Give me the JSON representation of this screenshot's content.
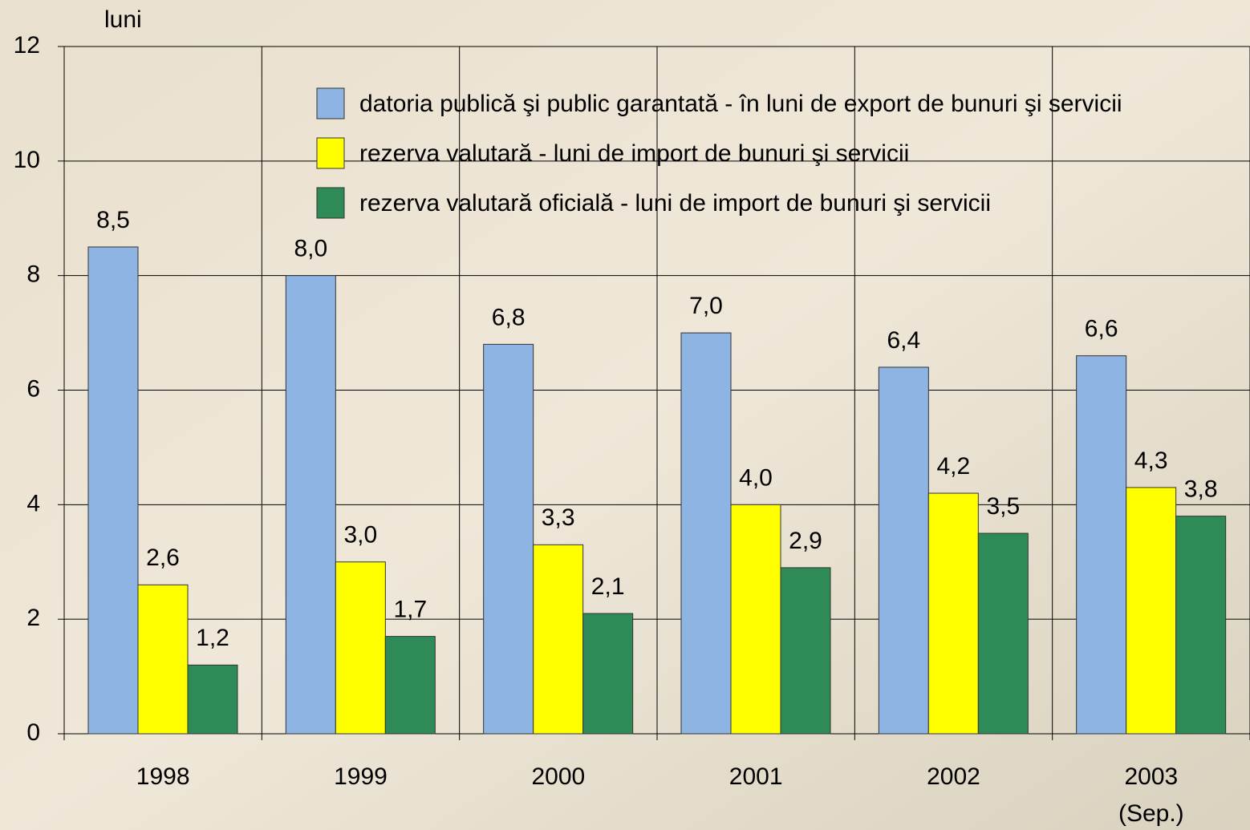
{
  "chart_data": {
    "type": "bar",
    "y_label": "luni",
    "categories": [
      "1998",
      "1999",
      "2000",
      "2001",
      "2002",
      "2003\n(Sep.)"
    ],
    "series": [
      {
        "name": "datoria publică şi public garantată - în luni de export de bunuri şi servicii",
        "color": "#8db4e2",
        "values": [
          8.5,
          8.0,
          6.8,
          7.0,
          6.4,
          6.6
        ],
        "value_labels": [
          "8,5",
          "8,0",
          "6,8",
          "7,0",
          "6,4",
          "6,6"
        ]
      },
      {
        "name": "rezerva valutară - luni de import de bunuri şi servicii",
        "color": "#ffff00",
        "values": [
          2.6,
          3.0,
          3.3,
          4.0,
          4.2,
          4.3
        ],
        "value_labels": [
          "2,6",
          "3,0",
          "3,3",
          "4,0",
          "4,2",
          "4,3"
        ]
      },
      {
        "name": "rezerva valutară oficială - luni de import de bunuri şi servicii",
        "color": "#2e8b57",
        "values": [
          1.2,
          1.7,
          2.1,
          2.9,
          3.5,
          3.8
        ],
        "value_labels": [
          "1,2",
          "1,7",
          "2,1",
          "2,9",
          "3,5",
          "3,8"
        ]
      }
    ],
    "ylim": [
      0,
      12
    ],
    "yticks": [
      0,
      2,
      4,
      6,
      8,
      10,
      12
    ],
    "grid": true,
    "legend": "top"
  }
}
